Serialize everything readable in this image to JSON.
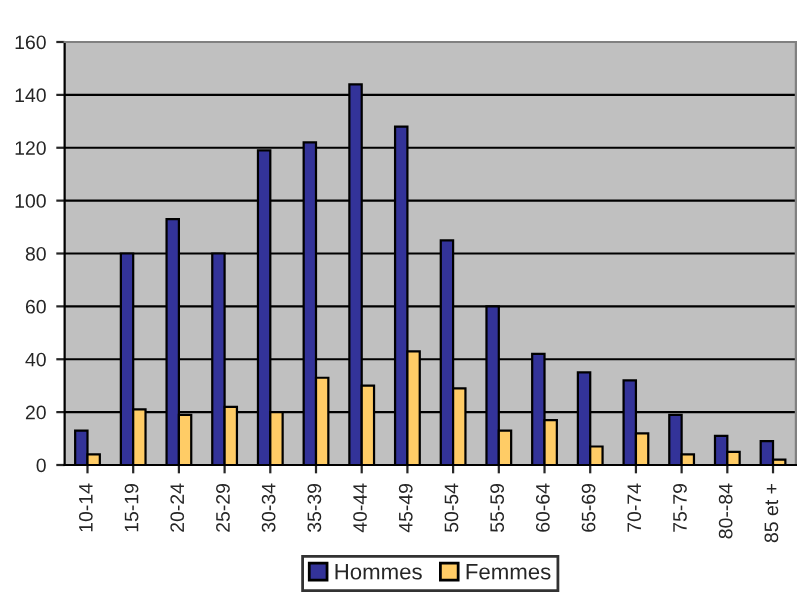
{
  "chart_data": {
    "type": "bar",
    "categories": [
      "10-14",
      "15-19",
      "20-24",
      "25-29",
      "30-34",
      "35-39",
      "40-44",
      "45-49",
      "50-54",
      "55-59",
      "60-64",
      "65-69",
      "70-74",
      "75-79",
      "80--84",
      "85 et +"
    ],
    "series": [
      {
        "name": "Hommes",
        "color": "#333399",
        "values": [
          13,
          80,
          93,
          80,
          119,
          122,
          144,
          128,
          85,
          60,
          42,
          35,
          32,
          19,
          11,
          9
        ]
      },
      {
        "name": "Femmes",
        "color": "#ffcc66",
        "values": [
          4,
          21,
          19,
          22,
          20,
          33,
          30,
          43,
          29,
          13,
          17,
          7,
          12,
          4,
          5,
          2
        ]
      }
    ],
    "ylim": [
      0,
      160
    ],
    "yticks": [
      0,
      20,
      40,
      60,
      80,
      100,
      120,
      140,
      160
    ],
    "grid": "y",
    "legend": "bottom"
  }
}
